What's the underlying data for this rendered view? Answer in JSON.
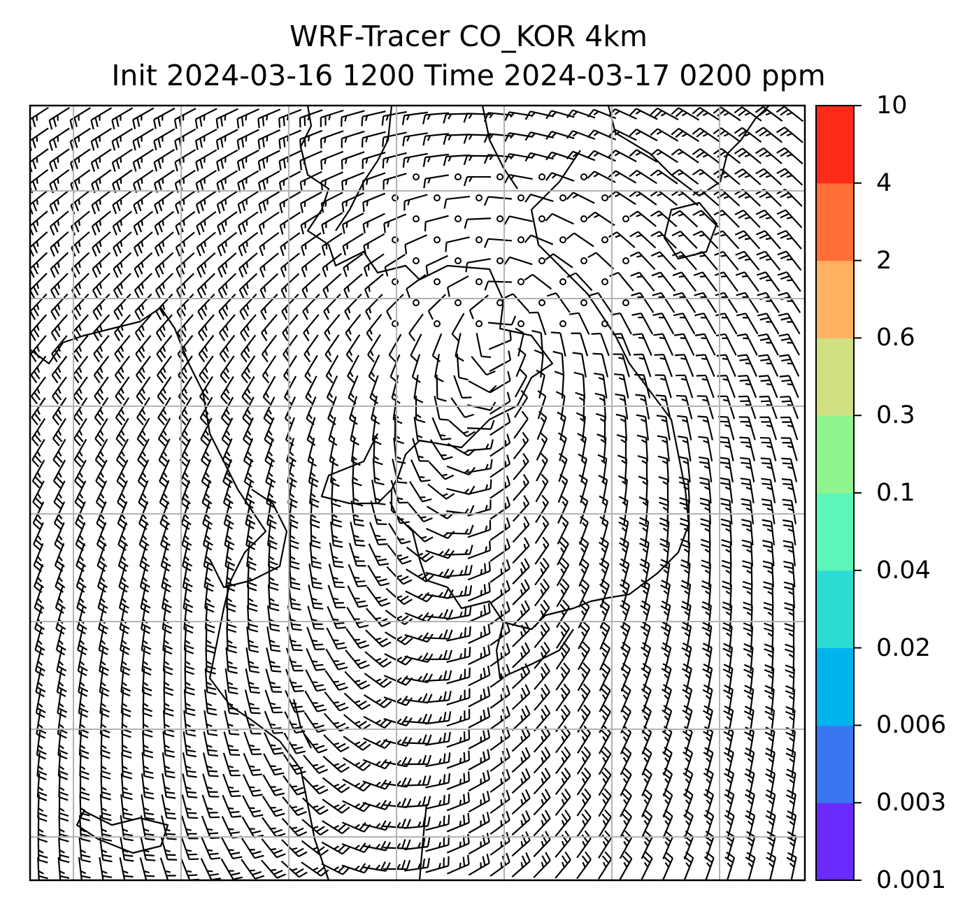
{
  "figure": {
    "title_line1": "WRF-Tracer CO_KOR 4km",
    "title_line2": "Init 2024-03-16 1200 Time 2024-03-17 0200 ppm"
  },
  "colorbar": {
    "levels": [
      "0.001",
      "0.003",
      "0.006",
      "0.02",
      "0.04",
      "0.1",
      "0.3",
      "0.6",
      "2",
      "4",
      "10"
    ],
    "colors": [
      "#6a2bff",
      "#3a76f2",
      "#00b4ee",
      "#2ddcd2",
      "#5ef5b8",
      "#90f58f",
      "#d2e084",
      "#ffb060",
      "#ff7038",
      "#ff2a18"
    ]
  },
  "map": {
    "field": "wind barbs over tracer CO concentration",
    "calm_marker": "circle",
    "grid": true
  }
}
